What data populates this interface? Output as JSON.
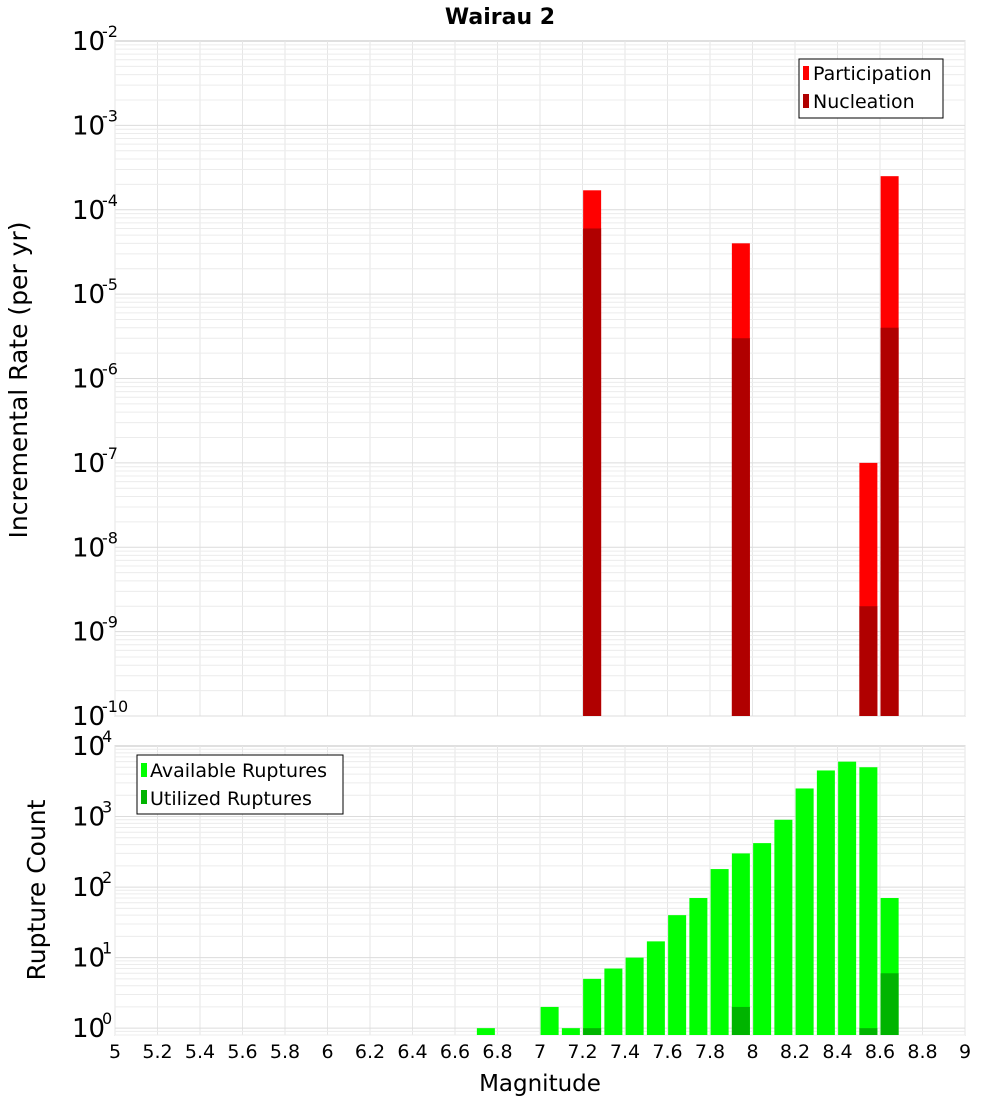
{
  "chart_data": [
    {
      "type": "bar",
      "title": "Wairau 2",
      "ylabel": "Incremental Rate (per yr)",
      "xlabel": "",
      "yscale": "log",
      "ylim": [
        1e-10,
        0.01
      ],
      "xlim": [
        5,
        9
      ],
      "grid": true,
      "legend_position": "top-right",
      "y_tick_labels": [
        {
          "base": "10",
          "exp": "-2"
        },
        {
          "base": "10",
          "exp": "-3"
        },
        {
          "base": "10",
          "exp": "-4"
        },
        {
          "base": "10",
          "exp": "-5"
        },
        {
          "base": "10",
          "exp": "-6"
        },
        {
          "base": "10",
          "exp": "-7"
        },
        {
          "base": "10",
          "exp": "-8"
        },
        {
          "base": "10",
          "exp": "-9"
        },
        {
          "base": "10",
          "exp": "-10"
        }
      ],
      "series": [
        {
          "name": "Participation",
          "color": "#ff0000",
          "points": [
            [
              7.25,
              0.00017
            ],
            [
              7.95,
              4e-05
            ],
            [
              8.55,
              1e-07
            ],
            [
              8.65,
              0.00025
            ]
          ]
        },
        {
          "name": "Nucleation",
          "color": "#b00000",
          "points": [
            [
              7.25,
              6e-05
            ],
            [
              7.95,
              3e-06
            ],
            [
              8.55,
              2e-09
            ],
            [
              8.65,
              4e-06
            ]
          ]
        }
      ]
    },
    {
      "type": "bar",
      "title": "",
      "ylabel": "Rupture Count",
      "xlabel": "Magnitude",
      "yscale": "log",
      "ylim": [
        0.8,
        10000
      ],
      "xlim": [
        5,
        9
      ],
      "grid": true,
      "legend_position": "top-left",
      "y_tick_labels": [
        {
          "base": "10",
          "exp": "4"
        },
        {
          "base": "10",
          "exp": "3"
        },
        {
          "base": "10",
          "exp": "2"
        },
        {
          "base": "10",
          "exp": "1"
        },
        {
          "base": "10",
          "exp": "0"
        }
      ],
      "x_tick_labels": [
        "5",
        "5.2",
        "5.4",
        "5.6",
        "5.8",
        "6",
        "6.2",
        "6.4",
        "6.6",
        "6.8",
        "7",
        "7.2",
        "7.4",
        "7.6",
        "7.8",
        "8",
        "8.2",
        "8.4",
        "8.6",
        "8.8",
        "9"
      ],
      "series": [
        {
          "name": "Available Ruptures",
          "color": "#00ff00",
          "points": [
            [
              6.75,
              1
            ],
            [
              7.05,
              2
            ],
            [
              7.15,
              1
            ],
            [
              7.25,
              5
            ],
            [
              7.35,
              7
            ],
            [
              7.45,
              10
            ],
            [
              7.55,
              17
            ],
            [
              7.65,
              40
            ],
            [
              7.75,
              70
            ],
            [
              7.85,
              180
            ],
            [
              7.95,
              300
            ],
            [
              8.05,
              420
            ],
            [
              8.15,
              900
            ],
            [
              8.25,
              2500
            ],
            [
              8.35,
              4500
            ],
            [
              8.45,
              6000
            ],
            [
              8.55,
              5000
            ],
            [
              8.65,
              70
            ]
          ]
        },
        {
          "name": "Utilized Ruptures",
          "color": "#00b400",
          "points": [
            [
              7.25,
              1
            ],
            [
              7.95,
              2
            ],
            [
              8.55,
              1
            ],
            [
              8.65,
              6
            ]
          ]
        }
      ]
    }
  ]
}
